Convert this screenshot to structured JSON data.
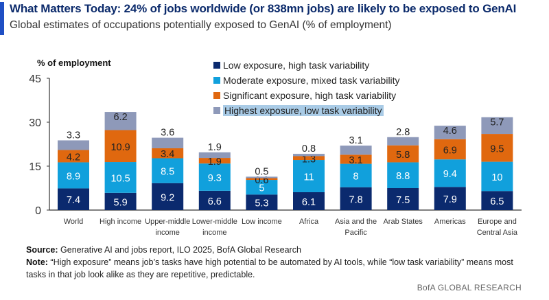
{
  "header": {
    "title": "What Matters Today: 24% of jobs worldwide (or 838mn jobs) are likely to be exposed to GenAI",
    "subtitle": "Global estimates of occupations potentially exposed to GenAI (% of employment)"
  },
  "footer": {
    "source_label": "Source:",
    "source_text": " Generative AI and jobs report, ILO 2025, BofA Global Research",
    "note_label": "Note:",
    "note_text": " “High exposure” means job’s tasks have high potential to be automated by AI tools, while “low task variability” means most tasks in that job look alike as they are repetitive, predictable.",
    "brand": "BofA GLOBAL RESEARCH"
  },
  "chart_data": {
    "type": "bar",
    "stacked": true,
    "title": "",
    "ylabel": "% of employment",
    "xlabel": "",
    "ylim": [
      0,
      45
    ],
    "yticks": [
      0,
      15,
      30,
      45
    ],
    "grid": false,
    "legend_placement": "top-right",
    "categories": [
      [
        "World"
      ],
      [
        "High income"
      ],
      [
        "Upper-middle",
        "income"
      ],
      [
        "Lower-middle",
        "income"
      ],
      [
        "Low income"
      ],
      [
        "Africa"
      ],
      [
        "Asia and the",
        "Pacific"
      ],
      [
        "Arab States"
      ],
      [
        "Americas"
      ],
      [
        "Europe and",
        "Central Asia"
      ]
    ],
    "series": [
      {
        "name": "Low exposure, high task variability",
        "color": "#0b2a6e",
        "values": [
          7.4,
          5.9,
          9.2,
          6.6,
          5.3,
          6.1,
          7.8,
          7.5,
          7.9,
          6.5
        ]
      },
      {
        "name": "Moderate exposure, mixed task variability",
        "color": "#11a0dc",
        "values": [
          8.9,
          10.5,
          8.5,
          9.3,
          5,
          11,
          8,
          8.8,
          9.4,
          10
        ]
      },
      {
        "name": "Significant exposure, high task variability",
        "color": "#e0680f",
        "values": [
          4.2,
          10.9,
          3.4,
          1.9,
          0.6,
          1.3,
          3.1,
          5.8,
          6.9,
          9.5
        ]
      },
      {
        "name": "Highest exposure, low task variability",
        "color": "#8e99b9",
        "values": [
          3.3,
          6.2,
          3.6,
          1.9,
          0.5,
          0.8,
          3.1,
          2.8,
          4.6,
          5.7
        ]
      }
    ]
  }
}
